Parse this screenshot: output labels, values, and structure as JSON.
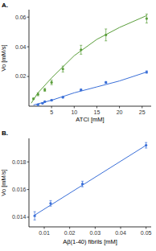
{
  "chart_data": [
    {
      "type": "scatter",
      "title": "A.",
      "x_label": "ATCI [mM]",
      "y_label": "Vo [mM/s]",
      "xlim": [
        0,
        27
      ],
      "xticks": [
        5,
        10,
        15,
        20,
        25
      ],
      "ylim": [
        0,
        0.065
      ],
      "yticks": [
        0.02,
        0.04,
        0.06
      ],
      "grid": false,
      "series": [
        {
          "type": "scatter",
          "color": "#5a9e3a",
          "marker": "circle",
          "x": [
            1,
            2,
            3.5,
            5,
            7.5,
            11.5,
            17,
            26
          ],
          "values": [
            0.005,
            0.008,
            0.011,
            0.016,
            0.025,
            0.038,
            0.048,
            0.059
          ],
          "error": [
            0.0005,
            0.001,
            0.001,
            0.0015,
            0.002,
            0.003,
            0.004,
            0.003
          ]
        },
        {
          "type": "line",
          "color": "#5a9e3a",
          "line_style": "solid",
          "x": [
            0.5,
            2,
            5,
            10,
            15,
            20,
            26
          ],
          "values": [
            0.002,
            0.009,
            0.019,
            0.034,
            0.045,
            0.053,
            0.061
          ]
        },
        {
          "type": "scatter",
          "color": "#3a6fd8",
          "marker": "circle",
          "x": [
            2,
            3,
            3.5,
            5,
            7.5,
            11.5,
            17,
            26
          ],
          "values": [
            0.001,
            0.002,
            0.003,
            0.004,
            0.006,
            0.011,
            0.016,
            0.023
          ],
          "error": [
            0.0003,
            0.0003,
            0.0003,
            0.0004,
            0.0004,
            0.0005,
            0.0006,
            0.0008
          ]
        },
        {
          "type": "line",
          "color": "#3a6fd8",
          "line_style": "solid",
          "x": [
            1,
            5,
            10,
            15,
            20,
            26
          ],
          "values": [
            0.0008,
            0.004,
            0.009,
            0.013,
            0.017,
            0.023
          ]
        }
      ]
    },
    {
      "type": "scatter",
      "title": "B.",
      "x_label": "Aβ(1-40) fibrils [mM]",
      "y_label": "Vo [mM/s]",
      "xlim": [
        0.004,
        0.052
      ],
      "xticks": [
        0.01,
        0.02,
        0.03,
        0.04,
        0.05
      ],
      "ylim": [
        0.0133,
        0.0197
      ],
      "yticks": [
        0.014,
        0.016,
        0.018
      ],
      "grid": false,
      "series": [
        {
          "type": "scatter",
          "color": "#3a6fd8",
          "marker": "circle",
          "x": [
            0.00625,
            0.0125,
            0.025,
            0.05
          ],
          "values": [
            0.0141,
            0.015,
            0.0164,
            0.0192
          ],
          "error": [
            0.0003,
            0.0002,
            0.0002,
            0.0002
          ]
        },
        {
          "type": "line",
          "color": "#3a6fd8",
          "line_style": "solid",
          "x": [
            0.00625,
            0.05
          ],
          "values": [
            0.01415,
            0.0192
          ]
        }
      ]
    }
  ]
}
